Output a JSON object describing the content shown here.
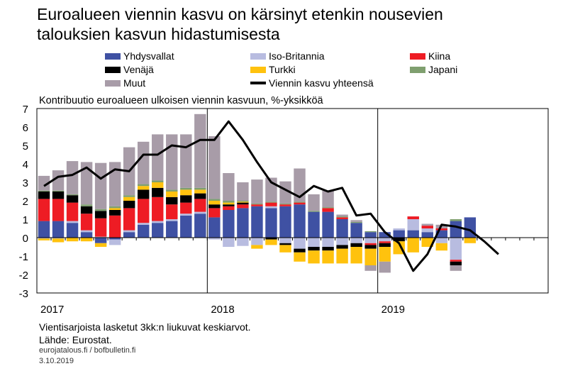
{
  "title_line1": "Euroalueen viennin kasvu on kärsinyt etenkin nousevien",
  "title_line2": "talouksien kasvun hidastumisesta",
  "subtitle": "Kontribuutio euroalueen ulkoisen viennin kasvuun, %-yksikköä",
  "note": "Vientisarjoista lasketut 3kk:n liukuvat keskiarvot.",
  "source": "Lähde: Eurostat.",
  "credit": "eurojatalous.fi / bofbulletin.fi",
  "date": "3.10.2019",
  "colors": {
    "usa": "#3f51a3",
    "uk": "#b8bce0",
    "china": "#ee1c24",
    "russia": "#000000",
    "turkey": "#ffc20e",
    "japan": "#7f9f6f",
    "other": "#a89ca8",
    "total": "#000000"
  },
  "legend": [
    {
      "key": "usa",
      "label": "Yhdysvallat"
    },
    {
      "key": "uk",
      "label": "Iso-Britannia"
    },
    {
      "key": "china",
      "label": "Kiina"
    },
    {
      "key": "russia",
      "label": "Venäjä"
    },
    {
      "key": "turkey",
      "label": "Turkki"
    },
    {
      "key": "japan",
      "label": "Japani"
    },
    {
      "key": "other",
      "label": "Muut"
    },
    {
      "key": "total",
      "label": "Viennin kasvu yhteensä"
    }
  ],
  "chart_data": {
    "type": "bar",
    "stacked": true,
    "y_ticks": [
      -3,
      -2,
      -1,
      0,
      1,
      2,
      3,
      4,
      5,
      6,
      7
    ],
    "ylim": [
      -3,
      7
    ],
    "x_year_labels": [
      "2017",
      "2018",
      "2019"
    ],
    "months": [
      "2017-01",
      "2017-02",
      "2017-03",
      "2017-04",
      "2017-05",
      "2017-06",
      "2017-07",
      "2017-08",
      "2017-09",
      "2017-10",
      "2017-11",
      "2017-12",
      "2018-01",
      "2018-02",
      "2018-03",
      "2018-04",
      "2018-05",
      "2018-06",
      "2018-07",
      "2018-08",
      "2018-09",
      "2018-10",
      "2018-11",
      "2018-12",
      "2019-01",
      "2019-02",
      "2019-03",
      "2019-04",
      "2019-05",
      "2019-06",
      "2019-07",
      "2019-08",
      "2019-09",
      "2019-10",
      "2019-11",
      "2019-12"
    ],
    "series": [
      {
        "key": "usa",
        "name": "Yhdysvallat",
        "values": [
          0.9,
          0.9,
          0.8,
          0.3,
          -0.3,
          -0.1,
          0.3,
          0.7,
          0.8,
          0.9,
          1.2,
          1.3,
          1.1,
          1.5,
          1.6,
          1.7,
          1.6,
          1.7,
          1.8,
          1.4,
          1.4,
          1.0,
          0.8,
          0.3,
          0.3,
          0.4,
          0.4,
          0.3,
          0.4,
          0.9,
          1.1,
          null,
          null,
          null,
          null,
          null
        ]
      },
      {
        "key": "uk",
        "name": "Iso-Britannia",
        "values": [
          -0.05,
          -0.05,
          0.1,
          0.1,
          0.05,
          -0.3,
          0.1,
          0.1,
          0.1,
          0.1,
          0.1,
          0.1,
          -0.1,
          -0.5,
          -0.45,
          -0.4,
          0.1,
          -0.3,
          -0.6,
          -0.5,
          -0.5,
          -0.4,
          -0.3,
          -0.3,
          -0.2,
          0.1,
          0.6,
          0.2,
          -0.3,
          -1.2,
          0.0,
          null,
          null,
          null,
          null,
          null
        ]
      },
      {
        "key": "china",
        "name": "Kiina",
        "values": [
          1.2,
          1.2,
          1.0,
          0.9,
          1.0,
          1.2,
          1.2,
          1.3,
          1.3,
          0.8,
          0.6,
          0.7,
          0.5,
          0.2,
          0.2,
          0.1,
          0.2,
          0.1,
          0.1,
          0.0,
          0.2,
          0.1,
          0.0,
          -0.1,
          -0.1,
          0.0,
          0.15,
          0.15,
          0.1,
          -0.1,
          0.0,
          null,
          null,
          null,
          null,
          null
        ]
      },
      {
        "key": "russia",
        "name": "Venäjä",
        "values": [
          0.4,
          0.4,
          0.4,
          0.4,
          0.4,
          0.3,
          0.4,
          0.5,
          0.5,
          0.4,
          0.4,
          0.3,
          0.2,
          0.1,
          0.1,
          0.0,
          -0.1,
          -0.1,
          -0.2,
          -0.2,
          -0.2,
          -0.2,
          -0.2,
          -0.2,
          -0.2,
          -0.2,
          0.0,
          0.0,
          0.0,
          -0.2,
          0.0,
          null,
          null,
          null,
          null,
          null
        ]
      },
      {
        "key": "turkey",
        "name": "Turkki",
        "values": [
          -0.1,
          -0.2,
          -0.2,
          -0.2,
          -0.2,
          0.1,
          0.2,
          0.2,
          0.3,
          0.3,
          0.3,
          0.2,
          0.2,
          0.1,
          0.05,
          -0.2,
          -0.3,
          -0.4,
          -0.5,
          -0.7,
          -0.7,
          -0.8,
          -0.9,
          -0.9,
          -0.8,
          -0.7,
          -0.8,
          -0.5,
          -0.4,
          0.0,
          -0.3,
          null,
          null,
          null,
          null,
          null
        ]
      },
      {
        "key": "japan",
        "name": "Japani",
        "values": [
          0.05,
          0.05,
          0.05,
          0.1,
          0.1,
          0.1,
          0.1,
          0.1,
          0.1,
          0.1,
          0.1,
          0.1,
          0.1,
          0.1,
          0.05,
          0.05,
          0.05,
          0.05,
          0.05,
          0.05,
          0.05,
          0.05,
          0.05,
          0.05,
          0.0,
          0.0,
          0.0,
          0.0,
          0.0,
          0.1,
          0.0,
          null,
          null,
          null,
          null,
          null
        ]
      },
      {
        "key": "other",
        "name": "Muut",
        "values": [
          0.8,
          1.1,
          1.8,
          2.3,
          2.5,
          2.4,
          2.6,
          2.3,
          2.5,
          3.0,
          2.9,
          4.0,
          3.4,
          1.5,
          1.0,
          1.3,
          1.3,
          1.2,
          1.8,
          0.9,
          0.9,
          0.1,
          0.1,
          -0.3,
          -0.6,
          0.0,
          0.0,
          0.1,
          0.2,
          -0.3,
          0.0,
          null,
          null,
          null,
          null,
          null
        ]
      }
    ],
    "total": {
      "name": "Viennin kasvu yhteensä",
      "values": [
        2.8,
        3.3,
        3.4,
        3.8,
        3.2,
        3.7,
        3.6,
        4.5,
        4.5,
        5.0,
        4.9,
        5.3,
        5.3,
        6.3,
        5.3,
        4.1,
        3.0,
        2.6,
        2.2,
        2.8,
        2.5,
        2.7,
        1.2,
        1.3,
        0.3,
        -0.3,
        -1.8,
        -0.9,
        0.7,
        0.6,
        0.4,
        -0.2,
        -0.9,
        null,
        null,
        null
      ]
    }
  }
}
